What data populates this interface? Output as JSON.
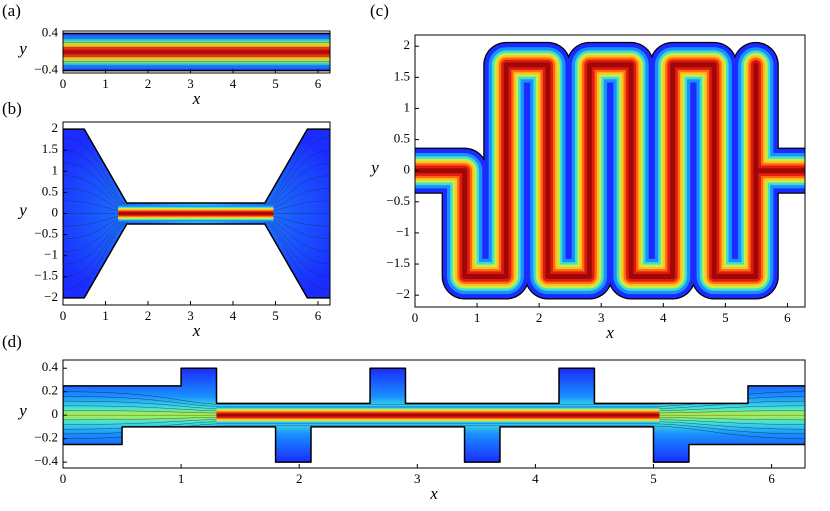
{
  "chart_data": [
    {
      "type": "contour",
      "panel_label": "(a)",
      "x_label": "x",
      "y_label": "y",
      "xlim": [
        0,
        6.283
      ],
      "ylim": [
        -0.45,
        0.45
      ],
      "xticks": [
        0,
        1,
        2,
        3,
        4,
        5,
        6
      ],
      "yticks": [
        {
          "value": -0.4,
          "label": "−0.4"
        },
        0.4
      ]
    },
    {
      "type": "contour",
      "panel_label": "(b)",
      "x_label": "x",
      "y_label": "y",
      "xlim": [
        0,
        6.283
      ],
      "ylim": [
        -2.17,
        2.17
      ],
      "xticks": [
        0,
        1,
        2,
        3,
        4,
        5,
        6
      ],
      "yticks": [
        {
          "value": -2,
          "label": "−2"
        },
        {
          "value": -1.5,
          "label": "−1.5"
        },
        {
          "value": -1,
          "label": "−1"
        },
        {
          "value": -0.5,
          "label": "−0.5"
        },
        0,
        0.5,
        1,
        1.5,
        2
      ]
    },
    {
      "type": "contour",
      "panel_label": "(c)",
      "x_label": "x",
      "y_label": "y",
      "xlim": [
        0,
        6.283
      ],
      "ylim": [
        -2.19,
        2.18
      ],
      "xticks": [
        0,
        1,
        2,
        3,
        4,
        5,
        6
      ],
      "yticks": [
        {
          "value": -2,
          "label": "−2"
        },
        {
          "value": -1.5,
          "label": "−1.5"
        },
        {
          "value": -1,
          "label": "−1"
        },
        {
          "value": -0.5,
          "label": "−0.5"
        },
        0,
        0.5,
        1,
        1.5,
        2
      ]
    },
    {
      "type": "contour",
      "panel_label": "(d)",
      "x_label": "x",
      "y_label": "y",
      "xlim": [
        0,
        6.283
      ],
      "ylim": [
        -0.45,
        0.47
      ],
      "xticks": [
        0,
        1,
        2,
        3,
        4,
        5,
        6
      ],
      "yticks": [
        {
          "value": -0.4,
          "label": "−0.4"
        },
        {
          "value": -0.2,
          "label": "−0.2"
        },
        0,
        0.2,
        0.4
      ]
    }
  ]
}
